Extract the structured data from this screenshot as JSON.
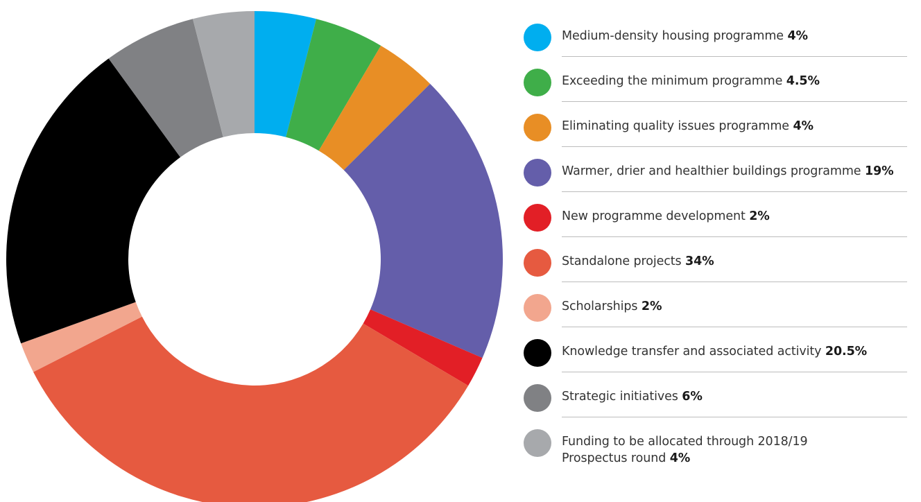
{
  "chart_data": {
    "type": "pie",
    "donut": true,
    "start_angle_deg": 0,
    "direction": "clockwise-from-top",
    "slices": [
      {
        "label": "Medium-density housing programme",
        "value": 4,
        "value_label": "4%",
        "color": "#00AEEF"
      },
      {
        "label": "Exceeding the minimum programme",
        "value": 4.5,
        "value_label": "4.5%",
        "color": "#3FAE49"
      },
      {
        "label": "Eliminating quality issues programme",
        "value": 4,
        "value_label": "4%",
        "color": "#E88E25"
      },
      {
        "label": "Warmer, drier and healthier buildings programme",
        "value": 19,
        "value_label": "19%",
        "color": "#645EAA"
      },
      {
        "label": "New programme development",
        "value": 2,
        "value_label": "2%",
        "color": "#E21F26"
      },
      {
        "label": "Standalone projects",
        "value": 34,
        "value_label": "34%",
        "color": "#E65A40"
      },
      {
        "label": "Scholarships",
        "value": 2,
        "value_label": "2%",
        "color": "#F2A68E"
      },
      {
        "label": "Knowledge transfer and associated activity",
        "value": 20.5,
        "value_label": "20.5%",
        "color": "#000000"
      },
      {
        "label": "Strategic initiatives",
        "value": 6,
        "value_label": "6%",
        "color": "#808184"
      },
      {
        "label": "Funding to be allocated through 2018/19 Prospectus round",
        "label_lines": [
          "Funding to be allocated through 2018/19",
          "Prospectus round"
        ],
        "value": 4,
        "value_label": "4%",
        "color": "#A7A9AC"
      }
    ],
    "legend_position": "right",
    "grid": false
  }
}
